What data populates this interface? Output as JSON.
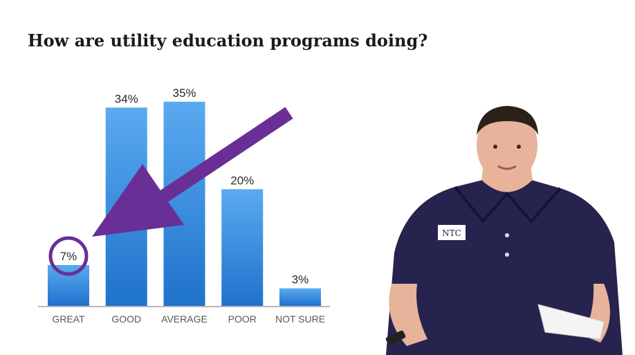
{
  "title": "How are utility education programs doing?",
  "chart_data": {
    "type": "bar",
    "title": "How are utility education programs doing?",
    "categories": [
      "GREAT",
      "GOOD",
      "AVERAGE",
      "POOR",
      "NOT SURE"
    ],
    "values": [
      7,
      34,
      35,
      20,
      3
    ],
    "value_labels": [
      "7%",
      "34%",
      "35%",
      "20%",
      "3%"
    ],
    "ylim": [
      0,
      35
    ],
    "grid": false,
    "highlight": "GREAT"
  },
  "colors": {
    "bar_top": "#5aaaf0",
    "bar_bottom": "#1f72cc",
    "accent": "#6a2f96",
    "axis": "#b8b8b8",
    "shirt": "#26234f",
    "skin": "#e8b39b"
  },
  "presenter": {
    "logo_text": "NTC"
  }
}
